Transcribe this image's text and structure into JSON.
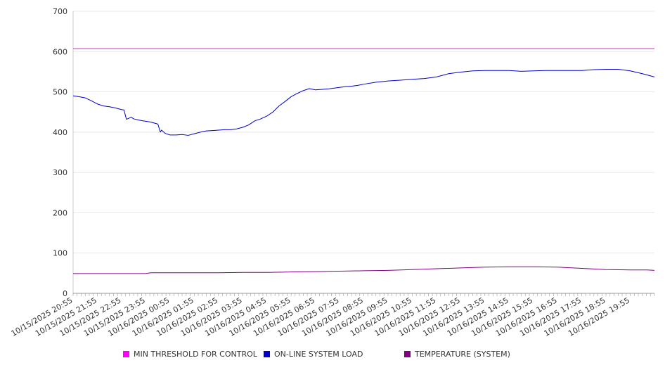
{
  "chart_data": {
    "type": "line",
    "ylim": [
      0,
      700
    ],
    "y_ticks": [
      0,
      100,
      200,
      300,
      400,
      500,
      600,
      700
    ],
    "x_tick_labels": [
      "10/15/2025 20:55",
      "10/15/2025 21:55",
      "10/15/2025 22:55",
      "10/15/2025 23:55",
      "10/16/2025 00:55",
      "10/16/2025 01:55",
      "10/16/2025 02:55",
      "10/16/2025 03:55",
      "10/16/2025 04:55",
      "10/16/2025 05:55",
      "10/16/2025 06:55",
      "10/16/2025 07:55",
      "10/16/2025 08:55",
      "10/16/2025 09:55",
      "10/16/2025 10:55",
      "10/16/2025 11:55",
      "10/16/2025 12:55",
      "10/16/2025 13:55",
      "10/16/2025 14:55",
      "10/16/2025 15:55",
      "10/16/2025 16:55",
      "10/16/2025 17:55",
      "10/16/2025 18:55",
      "10/16/2025 19:55"
    ],
    "grid": true,
    "legend_position": "bottom",
    "series": [
      {
        "name": "MIN THRESHOLD FOR CONTROL",
        "color": "#ff00ff",
        "x": [
          0,
          24
        ],
        "y": [
          607,
          607
        ]
      },
      {
        "name": "ON-LINE SYSTEM LOAD",
        "color": "#0000cc",
        "x": [
          0,
          0.25,
          0.5,
          0.75,
          1.0,
          1.25,
          1.5,
          1.75,
          2.0,
          2.1,
          2.2,
          2.4,
          2.5,
          2.7,
          2.9,
          3.0,
          3.2,
          3.5,
          3.6,
          3.65,
          3.8,
          4.0,
          4.25,
          4.5,
          4.75,
          5.0,
          5.25,
          5.5,
          5.75,
          6.0,
          6.25,
          6.5,
          6.75,
          7.0,
          7.25,
          7.5,
          7.75,
          8.0,
          8.25,
          8.5,
          8.75,
          9.0,
          9.25,
          9.5,
          9.75,
          10.0,
          10.25,
          10.5,
          10.75,
          11.0,
          11.25,
          11.5,
          11.75,
          12.0,
          12.5,
          13.0,
          13.5,
          14.0,
          14.5,
          15.0,
          15.5,
          16.0,
          16.5,
          17.0,
          17.5,
          18.0,
          18.5,
          19.0,
          19.5,
          20.0,
          20.5,
          21.0,
          21.5,
          22.0,
          22.5,
          23.0,
          23.5,
          24.0
        ],
        "y": [
          490,
          488,
          485,
          478,
          470,
          465,
          463,
          460,
          456,
          455,
          432,
          437,
          433,
          430,
          428,
          427,
          425,
          420,
          400,
          405,
          397,
          393,
          393,
          394,
          392,
          396,
          400,
          403,
          404,
          405,
          406,
          406,
          408,
          412,
          418,
          428,
          433,
          440,
          450,
          465,
          476,
          488,
          496,
          503,
          508,
          505,
          506,
          507,
          509,
          511,
          513,
          514,
          516,
          519,
          524,
          527,
          529,
          531,
          533,
          537,
          545,
          549,
          552,
          553,
          553,
          553,
          551,
          552,
          553,
          553,
          553,
          553,
          555,
          556,
          556,
          552,
          545,
          537
        ]
      },
      {
        "name": "TEMPERATURE (SYSTEM)",
        "color": "#800080",
        "x": [
          0,
          1,
          2,
          3,
          3.2,
          4,
          5,
          6,
          7,
          8,
          9,
          10,
          11,
          12,
          13,
          14,
          15,
          16,
          17,
          18,
          19,
          20,
          21,
          22,
          23,
          23.7,
          24
        ],
        "y": [
          49,
          49,
          49,
          49,
          51,
          51,
          51,
          51,
          52,
          52,
          53,
          54,
          55,
          56,
          57,
          59,
          61,
          63,
          65,
          66,
          66,
          65,
          62,
          59,
          58,
          58,
          57
        ]
      }
    ]
  }
}
